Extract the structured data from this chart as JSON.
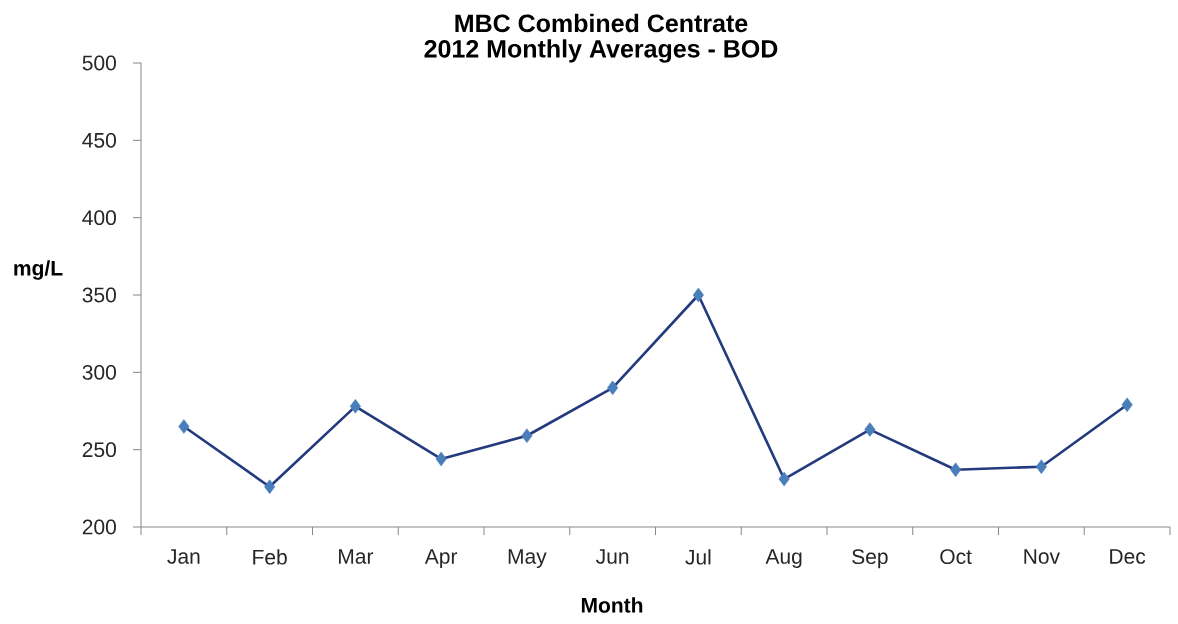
{
  "chart_data": {
    "type": "line",
    "title": "MBC Combined Centrate",
    "subtitle": "2012 Monthly Averages - BOD",
    "xlabel": "Month",
    "ylabel": "mg/L",
    "categories": [
      "Jan",
      "Feb",
      "Mar",
      "Apr",
      "May",
      "Jun",
      "Jul",
      "Aug",
      "Sep",
      "Oct",
      "Nov",
      "Dec"
    ],
    "series": [
      {
        "color": "#4a7ebb",
        "values": [
          265,
          226,
          278,
          244,
          259,
          290,
          350,
          231,
          263,
          237,
          239,
          279
        ]
      }
    ],
    "ylim": [
      200,
      500
    ],
    "yticks": [
      200,
      250,
      300,
      350,
      400,
      450,
      500
    ],
    "marker": "diamond",
    "line_style": "solid"
  }
}
